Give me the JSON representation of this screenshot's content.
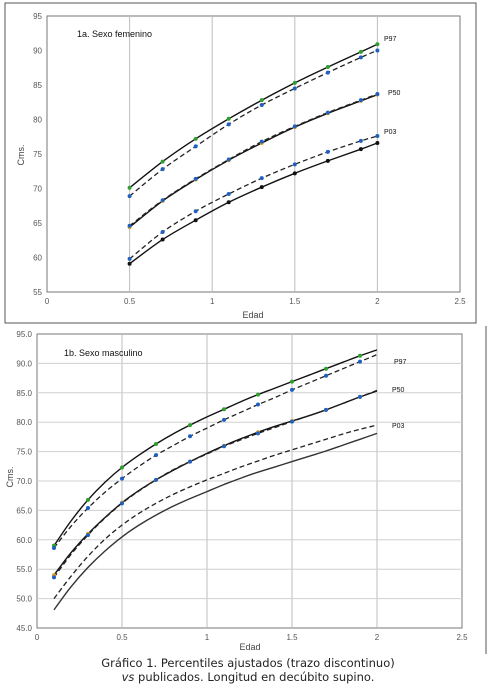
{
  "caption": {
    "line1": "Gráfico 1. Percentiles ajustados (trazo discontinuo)",
    "line2_italic": "vs",
    "line2_rest": " publicados. Longitud en decúbito supino."
  },
  "chart_data": [
    {
      "type": "line",
      "title": "1a. Sexo femenino",
      "xlabel": "Edad",
      "ylabel": "Cms.",
      "xlim": [
        0,
        2.5
      ],
      "ylim": [
        55,
        95
      ],
      "xticks": [
        0,
        0.5,
        1,
        1.5,
        2,
        2.5
      ],
      "xtick_labels": [
        "0",
        "0.5",
        "1",
        "1.5",
        "2",
        "2.5"
      ],
      "yticks": [
        55,
        60,
        65,
        70,
        75,
        80,
        85,
        90,
        95
      ],
      "ytick_labels": [
        "55",
        "60",
        "65",
        "70",
        "75",
        "80",
        "85",
        "90",
        "95"
      ],
      "grid": "vertical",
      "x": [
        0.5,
        0.7,
        0.9,
        1.1,
        1.3,
        1.5,
        1.7,
        1.9,
        2.0
      ],
      "series": [
        {
          "name": "P97",
          "style": "solid",
          "color": "#111111",
          "marker_color": "#2e9e2e",
          "values": [
            70.1,
            73.9,
            77.2,
            80.1,
            82.8,
            85.3,
            87.6,
            89.8,
            90.9
          ]
        },
        {
          "style": "dashed",
          "color": "#222222",
          "marker_color": "#1f5fbf",
          "values": [
            68.9,
            72.8,
            76.1,
            79.3,
            82.1,
            84.5,
            86.8,
            89.0,
            90.0
          ]
        },
        {
          "name": "P50",
          "style": "solid",
          "color": "#111111",
          "marker_color": "#e0a020",
          "values": [
            64.4,
            68.2,
            71.3,
            74.1,
            76.6,
            78.9,
            80.9,
            82.7,
            83.6
          ]
        },
        {
          "style": "dashed",
          "color": "#222222",
          "marker_color": "#1f5fbf",
          "values": [
            64.6,
            68.3,
            71.4,
            74.2,
            76.8,
            79.0,
            81.0,
            82.8,
            83.7
          ]
        },
        {
          "name": "P03",
          "style": "solid",
          "color": "#111111",
          "marker_color": "#111111",
          "values": [
            59.1,
            62.6,
            65.4,
            68.0,
            70.2,
            72.2,
            74.0,
            75.7,
            76.6
          ]
        },
        {
          "style": "dashed",
          "color": "#222222",
          "marker_color": "#1f5fbf",
          "values": [
            59.8,
            63.7,
            66.7,
            69.2,
            71.5,
            73.5,
            75.3,
            76.9,
            77.6
          ]
        }
      ]
    },
    {
      "type": "line",
      "title": "1b. Sexo masculino",
      "xlabel": "Edad",
      "ylabel": "Cms.",
      "xlim": [
        0,
        2.5
      ],
      "ylim": [
        45,
        95
      ],
      "xticks": [
        0,
        0.5,
        1,
        1.5,
        2,
        2.5
      ],
      "xtick_labels": [
        "0",
        "0.5",
        "1",
        "1.5",
        "2",
        "2.5"
      ],
      "yticks": [
        45,
        50,
        55,
        60,
        65,
        70,
        75,
        80,
        85,
        90,
        95
      ],
      "ytick_labels": [
        "45.0",
        "50.0",
        "55.0",
        "60.0",
        "65.0",
        "70.0",
        "75.0",
        "80.0",
        "85.0",
        "90.0",
        "95.0"
      ],
      "grid": "both",
      "x": [
        0.1,
        0.2,
        0.3,
        0.4,
        0.5,
        0.6,
        0.7,
        0.8,
        0.9,
        1.0,
        1.1,
        1.2,
        1.3,
        1.4,
        1.5,
        1.6,
        1.7,
        1.8,
        1.9,
        2.0
      ],
      "series": [
        {
          "name": "P97",
          "style": "solid",
          "color": "#111111",
          "marker_color": "#2e9e2e",
          "values": [
            59.0,
            63.2,
            66.8,
            69.8,
            72.3,
            74.4,
            76.3,
            78.0,
            79.5,
            80.9,
            82.2,
            83.5,
            84.7,
            85.8,
            86.9,
            88.0,
            89.1,
            90.2,
            91.3,
            92.3
          ]
        },
        {
          "style": "dashed",
          "color": "#222222",
          "marker_color": "#1f5fbf",
          "values": [
            58.6,
            62.3,
            65.4,
            68.1,
            70.4,
            72.5,
            74.4,
            76.0,
            77.6,
            79.0,
            80.4,
            81.7,
            83.0,
            84.2,
            85.5,
            86.7,
            87.9,
            89.1,
            90.3,
            91.5
          ]
        },
        {
          "name": "P50",
          "style": "solid",
          "color": "#111111",
          "marker_color": "#e0a020",
          "values": [
            54.0,
            57.8,
            61.0,
            63.8,
            66.3,
            68.4,
            70.2,
            71.8,
            73.3,
            74.7,
            76.0,
            77.2,
            78.3,
            79.3,
            80.2,
            81.1,
            82.1,
            83.2,
            84.3,
            85.3
          ]
        },
        {
          "style": "dashed",
          "color": "#222222",
          "marker_color": "#1f5fbf",
          "values": [
            53.6,
            57.5,
            60.8,
            63.7,
            66.2,
            68.3,
            70.2,
            71.9,
            73.3,
            74.6,
            75.9,
            77.0,
            78.1,
            79.1,
            80.1,
            81.1,
            82.1,
            83.2,
            84.3,
            85.4
          ]
        },
        {
          "name": "P03",
          "style": "solid",
          "color": "#333333",
          "values": [
            48.1,
            52.0,
            55.3,
            58.1,
            60.5,
            62.5,
            64.2,
            65.7,
            67.0,
            68.2,
            69.4,
            70.5,
            71.5,
            72.4,
            73.3,
            74.2,
            75.1,
            76.1,
            77.1,
            78.1
          ]
        },
        {
          "style": "dashed",
          "color": "#222222",
          "values": [
            50.0,
            53.8,
            57.2,
            60.1,
            62.5,
            64.5,
            66.2,
            67.7,
            69.0,
            70.2,
            71.3,
            72.4,
            73.4,
            74.4,
            75.3,
            76.2,
            77.1,
            78.0,
            78.8,
            79.5
          ]
        }
      ],
      "markers": {
        "P97": [
          0.1,
          0.3,
          0.5,
          0.7,
          0.9,
          1.1,
          1.3,
          1.5,
          1.7,
          1.9
        ],
        "P50": [
          0.1,
          0.3,
          0.5,
          0.7,
          0.9,
          1.1,
          1.3,
          1.5,
          1.7,
          1.9
        ]
      }
    }
  ]
}
